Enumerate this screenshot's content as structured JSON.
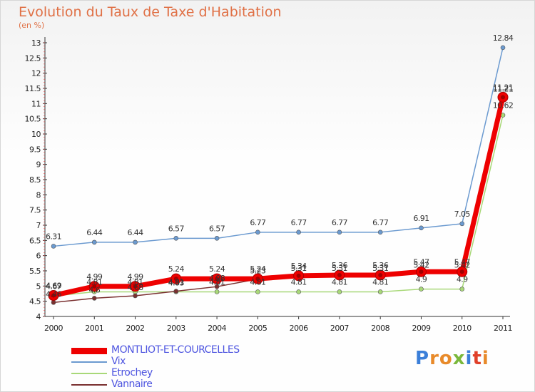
{
  "header": {
    "title": "Evolution du Taux de Taxe d'Habitation",
    "subtitle": "(en %)"
  },
  "logo": {
    "text": "Proxiti",
    "letter_colors": [
      "#3b7fd9",
      "#e88a2a",
      "#e88a2a",
      "#7ab83c",
      "#3b7fd9",
      "#e0402a",
      "#e88a2a"
    ]
  },
  "chart_data": {
    "type": "line",
    "title": "Evolution du Taux de Taxe d'Habitation",
    "subtitle": "(en %)",
    "xlabel": "",
    "ylabel": "",
    "x": [
      "2000",
      "2001",
      "2002",
      "2003",
      "2004",
      "2005",
      "2006",
      "2007",
      "2008",
      "2009",
      "2010",
      "2011"
    ],
    "ylim": [
      4,
      13
    ],
    "yticks": [
      "4",
      "4.5",
      "5",
      "5.5",
      "6",
      "6.5",
      "7",
      "7.5",
      "8",
      "8.5",
      "9",
      "9.5",
      "10",
      "10.5",
      "11",
      "11.5",
      "12",
      "12.5",
      "13"
    ],
    "grid": false,
    "legend_position": "bottom-left",
    "series": [
      {
        "name": "MONTLIOT-ET-COURCELLES",
        "color": "#ee0000",
        "values": [
          4.69,
          4.99,
          4.99,
          5.24,
          5.24,
          5.24,
          5.34,
          5.36,
          5.36,
          5.47,
          5.47,
          11.21
        ],
        "labels": [
          "4.69",
          "4.99",
          "4.99",
          "5.24",
          "5.24",
          "5.24",
          "5.34",
          "5.36",
          "5.36",
          "5.47",
          "5.47",
          "11.21"
        ]
      },
      {
        "name": "Vix",
        "color": "#6b9ad0",
        "values": [
          6.31,
          6.44,
          6.44,
          6.57,
          6.57,
          6.77,
          6.77,
          6.77,
          6.77,
          6.91,
          7.05,
          12.84
        ],
        "labels": [
          "6.31",
          "6.44",
          "6.44",
          "6.57",
          "6.57",
          "6.77",
          "6.77",
          "6.77",
          "6.77",
          "6.91",
          "7.05",
          "12.84"
        ]
      },
      {
        "name": "Etrochey",
        "color": "#a8d878",
        "values": [
          4.67,
          4.81,
          4.81,
          4.81,
          4.81,
          4.81,
          4.81,
          4.81,
          4.81,
          4.9,
          4.9,
          10.62
        ],
        "labels": [
          "4.67",
          "4.81",
          "4.81",
          "4.81",
          "4.81",
          "4.81",
          "4.81",
          "4.81",
          "4.81",
          "4.9",
          "4.9",
          "10.62"
        ]
      },
      {
        "name": "Vannaire",
        "color": "#7a3030",
        "values": [
          4.46,
          4.6,
          4.68,
          4.83,
          4.98,
          5.23,
          5.31,
          5.31,
          5.31,
          5.42,
          5.42,
          11.21
        ],
        "labels": [
          "4.46",
          "4.6",
          "4.68",
          "4.83",
          "4.98",
          "5.23",
          "5.31",
          "5.31",
          "5.31",
          "5.42",
          "5.42",
          "11.21"
        ]
      }
    ]
  },
  "legend": {
    "items": [
      {
        "label": "MONTLIOT-ET-COURCELLES",
        "color": "#ee0000",
        "thickness": 9
      },
      {
        "label": "Vix",
        "color": "#6b9ad0",
        "thickness": 2
      },
      {
        "label": "Etrochey",
        "color": "#a8d878",
        "thickness": 2
      },
      {
        "label": "Vannaire",
        "color": "#7a3030",
        "thickness": 2
      }
    ]
  }
}
